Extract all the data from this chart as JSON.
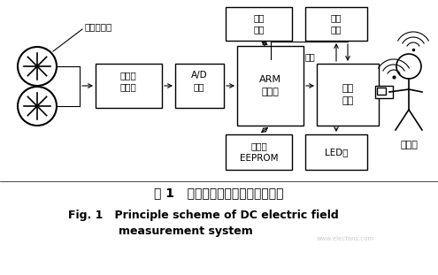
{
  "title_cn": "图 1   直流电场测量系统原理示意图",
  "title_en1": "Fig. 1   Principle scheme of DC electric field",
  "title_en2": "measurement system",
  "bg_color": "#ffffff",
  "box_color": "#ffffff",
  "box_edge": "#000000",
  "sensor_label": "电场传感器",
  "host_label": "上位机",
  "serial_label": "串口",
  "watermark": "www.elecfans.com",
  "label_analog": "模拟调\n理电路",
  "label_ad": "A/D\n转换",
  "label_arm": "ARM\n处理器",
  "label_wireless": "无线\n模块",
  "label_buffer": "缓冲\n区域",
  "label_lcd": "液晶\n显示",
  "label_watchdog": "看门狗\nEEPROM",
  "label_led": "LED灯"
}
